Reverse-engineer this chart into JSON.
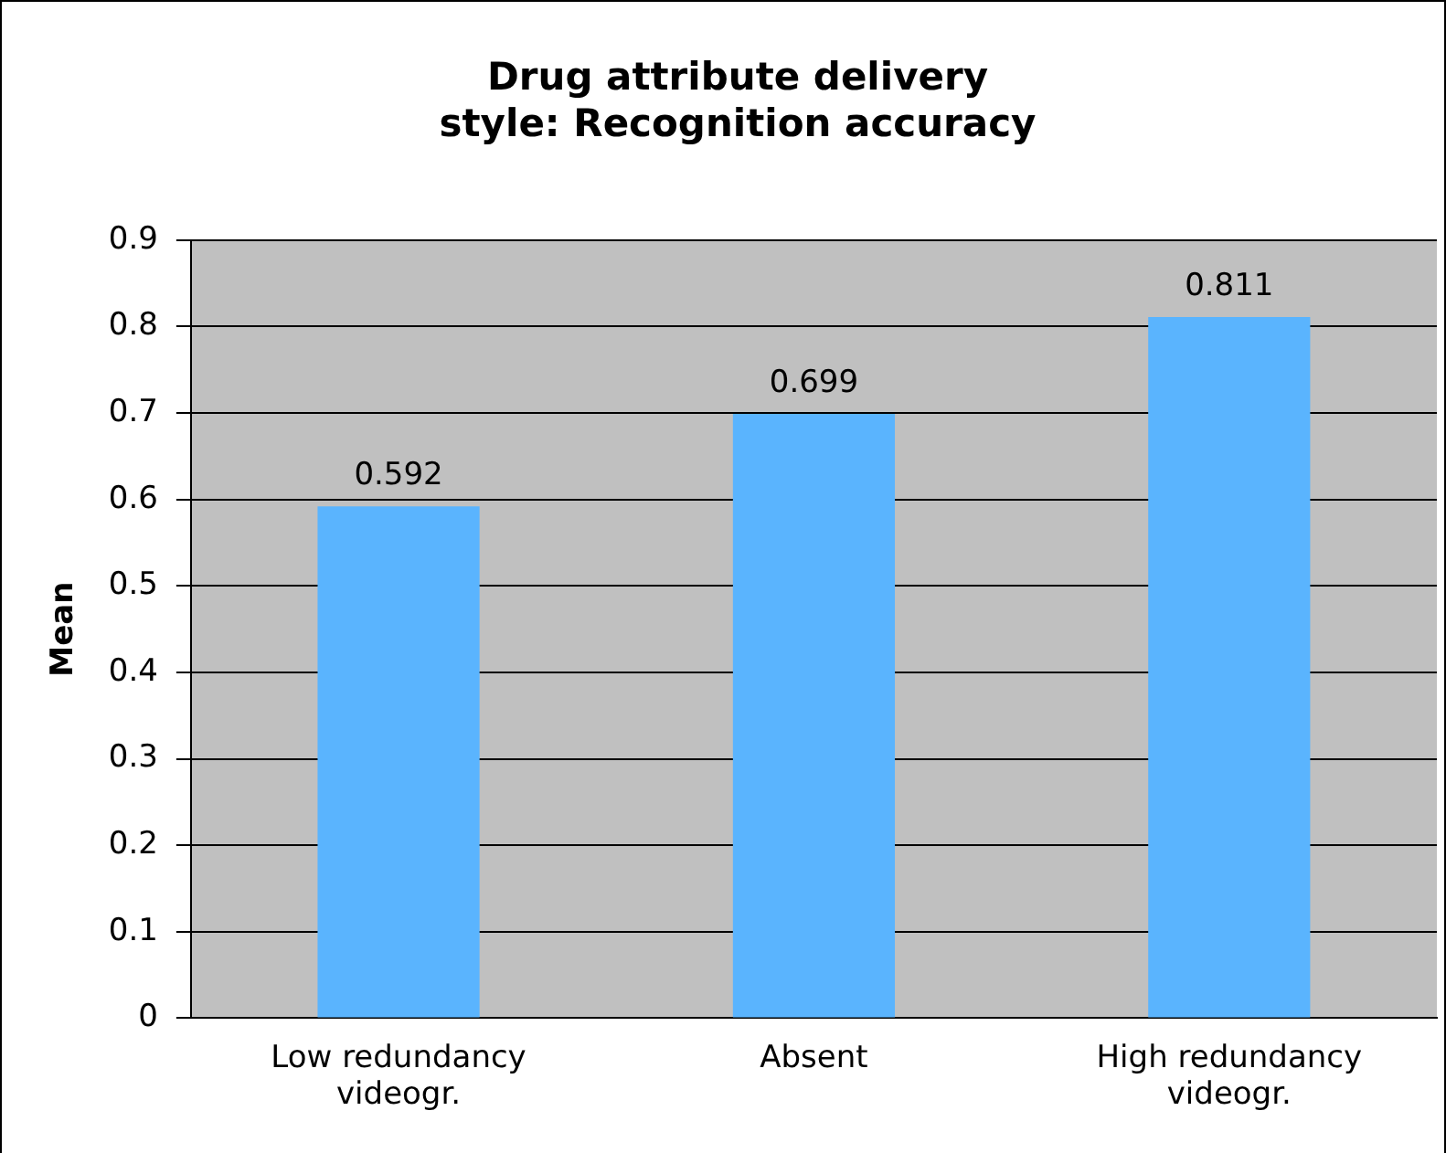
{
  "chart_data": {
    "type": "bar",
    "title": "Drug attribute delivery style: Recognition accuracy",
    "ylabel": "Mean",
    "categories": [
      "Low redundancy videogr.",
      "Absent",
      "High redundancy videogr."
    ],
    "values": [
      0.592,
      0.699,
      0.811
    ],
    "color": "#5ab4fe",
    "ylim": [
      0,
      0.9
    ],
    "yticks": [
      0,
      0.1,
      0.2,
      0.3,
      0.4,
      0.5,
      0.6,
      0.7,
      0.8,
      0.9
    ],
    "grid": "y",
    "data_labels": true,
    "legend": false
  }
}
